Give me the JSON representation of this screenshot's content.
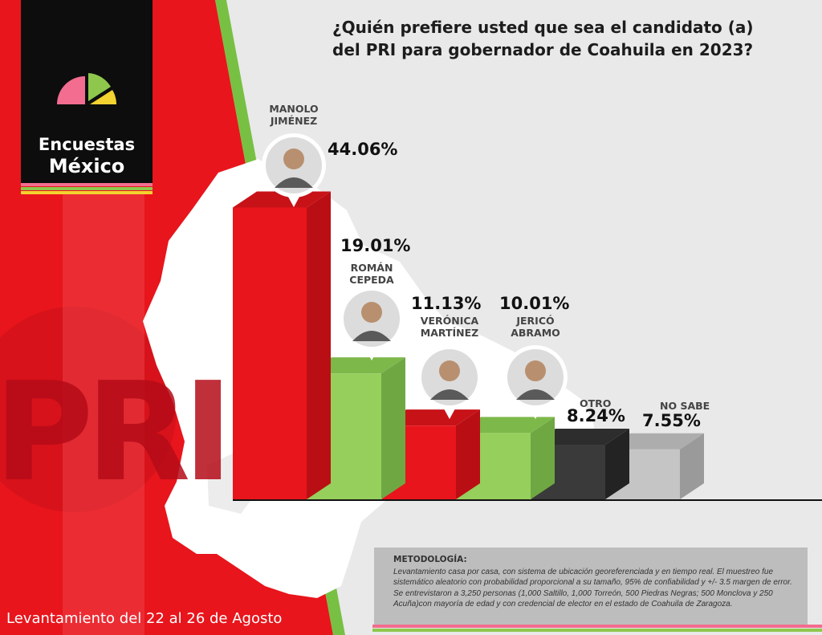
{
  "brand": {
    "logo_line1": "Encuestas",
    "logo_line2": "México",
    "watermark": "PRI"
  },
  "title": "¿Quién prefiere usted que sea el candidato (a) del PRI para gobernador de Coahuila en 2023?",
  "colors": {
    "red": "#e8151c",
    "green": "#96cf5c",
    "dark": "#3a3a3a",
    "gray": "#c5c5c5"
  },
  "chart_data": {
    "type": "bar",
    "title": "¿Quién prefiere usted que sea el candidato (a) del PRI para gobernador de Coahuila en 2023?",
    "unit": "%",
    "categories": [
      "MANOLO JIMÉNEZ",
      "ROMÁN CEPEDA",
      "VERÓNICA MARTÍNEZ",
      "JERICÓ ABRAMO",
      "OTRO",
      "NO SABE"
    ],
    "values": [
      44.06,
      19.01,
      11.13,
      10.01,
      8.24,
      7.55
    ],
    "value_labels": [
      "44.06%",
      "19.01%",
      "11.13%",
      "10.01%",
      "8.24%",
      "7.55%"
    ],
    "name_lines": [
      [
        "MANOLO",
        "JIMÉNEZ"
      ],
      [
        "ROMÁN",
        "CEPEDA"
      ],
      [
        "VERÓNICA",
        "MARTÍNEZ"
      ],
      [
        "JERICÓ",
        "ABRAMO"
      ],
      [
        "OTRO"
      ],
      [
        "NO SABE"
      ]
    ],
    "bar_colors": [
      "red",
      "green",
      "red",
      "green",
      "dark",
      "gray"
    ],
    "candidate_photos": [
      "candidate-photo-icon",
      "candidate-photo-icon",
      "candidate-photo-icon",
      "candidate-photo-icon"
    ],
    "style": "3d-bars",
    "grid": false,
    "legend": "none"
  },
  "methodology": {
    "heading": "METODOLOGÍA:",
    "body": "Levantamiento casa por casa, con sistema de ubicación georeferenciada y en tiempo real. El muestreo fue sistemático aleatorio con probabilidad proporcional a su tamaño, 95% de confiabilidad y +/- 3.5 margen de error. Se entrevistaron a 3,250 personas  (1,000 Saltillo, 1,000 Torreón, 500 Piedras Negras; 500 Monclova y 250 Acuña)con mayoría de edad y con credencial de elector en el estado de Coahuila de Zaragoza."
  },
  "footer": "Levantamiento del 22 al 26 de Agosto"
}
